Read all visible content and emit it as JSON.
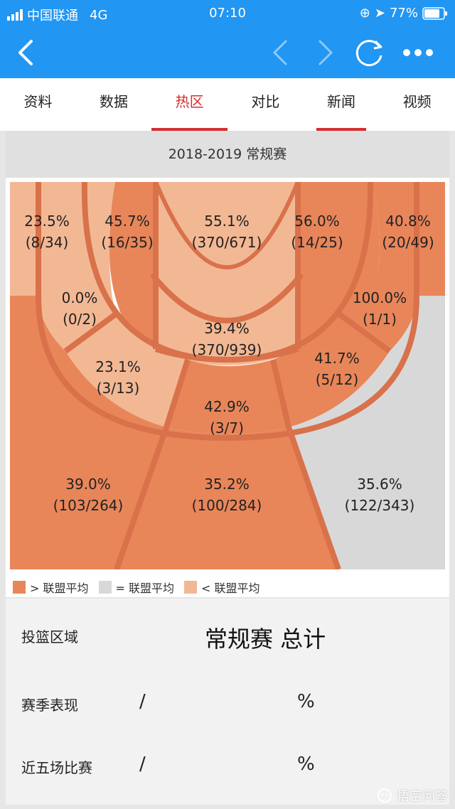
{
  "status_bar": {
    "carrier": "中国联通",
    "network": "4G",
    "time": "07:10",
    "battery": "77%"
  },
  "tabs": [
    {
      "label": "资料"
    },
    {
      "label": "数据"
    },
    {
      "label": "热区"
    },
    {
      "label": "对比"
    },
    {
      "label": "新闻"
    },
    {
      "label": "视频"
    }
  ],
  "season": "2018-2019 常规赛",
  "zones": [
    {
      "pct": "23.5%",
      "made_att": "(8/34)",
      "status": "below"
    },
    {
      "pct": "45.7%",
      "made_att": "(16/35)",
      "status": "above"
    },
    {
      "pct": "55.1%",
      "made_att": "(370/671)",
      "status": "below"
    },
    {
      "pct": "56.0%",
      "made_att": "(14/25)",
      "status": "above"
    },
    {
      "pct": "40.8%",
      "made_att": "(20/49)",
      "status": "above"
    },
    {
      "pct": "0.0%",
      "made_att": "(0/2)",
      "status": "below"
    },
    {
      "pct": "100.0%",
      "made_att": "(1/1)",
      "status": "above"
    },
    {
      "pct": "39.4%",
      "made_att": "(370/939)",
      "status": "below"
    },
    {
      "pct": "23.1%",
      "made_att": "(3/13)",
      "status": "below"
    },
    {
      "pct": "41.7%",
      "made_att": "(5/12)",
      "status": "above"
    },
    {
      "pct": "42.9%",
      "made_att": "(3/7)",
      "status": "above"
    },
    {
      "pct": "39.0%",
      "made_att": "(103/264)",
      "status": "above"
    },
    {
      "pct": "35.2%",
      "made_att": "(100/284)",
      "status": "above"
    },
    {
      "pct": "35.6%",
      "made_att": "(122/343)",
      "status": "equal"
    }
  ],
  "legend": [
    {
      "label": "> 联盟平均",
      "color": "#E8865A"
    },
    {
      "label": "= 联盟平均",
      "color": "#D8D8D8"
    },
    {
      "label": "< 联盟平均",
      "color": "#F2B894"
    }
  ],
  "colors": {
    "above": "#E8865A",
    "equal": "#D8D8D8",
    "below": "#F2B894",
    "line": "#D9714A",
    "accent": "#D32F2F",
    "brand": "#2196F3"
  },
  "table": {
    "col1_header": "投篮区域",
    "col2_header": "常规赛 总计",
    "rows": [
      {
        "label": "赛季表现",
        "fraction": "/",
        "percent": "%"
      },
      {
        "label": "近五场比赛",
        "fraction": "/",
        "percent": "%"
      }
    ]
  },
  "watermark": "悟空问答"
}
